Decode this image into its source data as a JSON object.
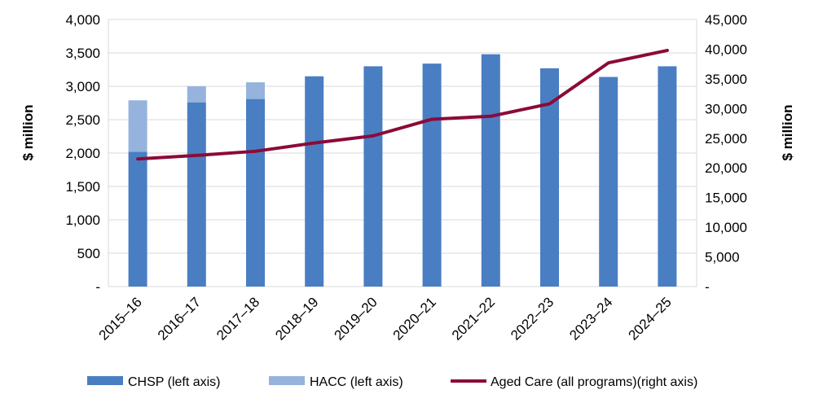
{
  "chart_data": {
    "type": "bar",
    "categories": [
      "2015–16",
      "2016–17",
      "2017–18",
      "2018–19",
      "2019–20",
      "2020–21",
      "2021–22",
      "2022–23",
      "2023–24",
      "2024–25"
    ],
    "series": [
      {
        "name": "CHSP (left axis)",
        "type": "bar",
        "axis": "left",
        "stack": "main",
        "color": "#4A7EC2",
        "values": [
          2020,
          2760,
          2810,
          3150,
          3300,
          3340,
          3480,
          3270,
          3140,
          3300
        ]
      },
      {
        "name": "HACC (left axis)",
        "type": "bar",
        "axis": "left",
        "stack": "main",
        "color": "#95B3DD",
        "values": [
          770,
          240,
          250,
          0,
          0,
          0,
          0,
          0,
          0,
          0
        ]
      },
      {
        "name": "Aged Care (all programs)(right axis)",
        "type": "line",
        "axis": "right",
        "color": "#8B0A3A",
        "values": [
          21500,
          22100,
          22800,
          24200,
          25400,
          28200,
          28700,
          30800,
          37700,
          39800
        ]
      }
    ],
    "ylabel": "$ million",
    "y2label": "$ million",
    "ylim": [
      0,
      4000
    ],
    "y2lim": [
      0,
      45000
    ],
    "yticks": [
      "-",
      "500",
      "1,000",
      "1,500",
      "2,000",
      "2,500",
      "3,000",
      "3,500",
      "4,000"
    ],
    "y2ticks": [
      "-",
      "5,000",
      "10,000",
      "15,000",
      "20,000",
      "25,000",
      "30,000",
      "35,000",
      "40,000",
      "45,000"
    ],
    "grid": true,
    "legend_position": "bottom"
  }
}
